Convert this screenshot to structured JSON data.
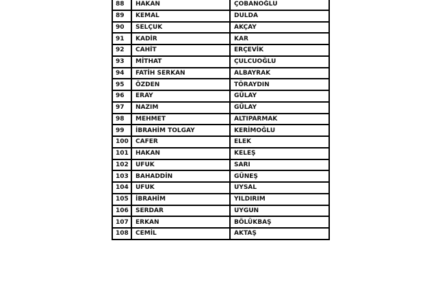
{
  "rows": [
    [
      "88",
      "HAKAN",
      "ÇOBANOĞLU"
    ],
    [
      "89",
      "KEMAL",
      "DULDA"
    ],
    [
      "90",
      "SELÇUK",
      "AKÇAY"
    ],
    [
      "91",
      "KADİR",
      "KAR"
    ],
    [
      "92",
      "CAHİT",
      "ERÇEVİK"
    ],
    [
      "93",
      "MİTHAT",
      "ÇULCUOĞLU"
    ],
    [
      "94",
      "FATİH SERKAN",
      "ALBAYRAK"
    ],
    [
      "95",
      "ÖZDEN",
      "TÖRAYDIN"
    ],
    [
      "96",
      "ERAY",
      "GÜLAY"
    ],
    [
      "97",
      "NAZIM",
      "GÜLAY"
    ],
    [
      "98",
      "MEHMET",
      "ALTIPARMAK"
    ],
    [
      "99",
      "İBRAHİM TOLGAY",
      "KERİMOĞLU"
    ],
    [
      "100",
      "CAFER",
      "ELEK"
    ],
    [
      "101",
      "HAKAN",
      "KELEŞ"
    ],
    [
      "102",
      "UFUK",
      "SARI"
    ],
    [
      "103",
      "BAHADDİN",
      "GÜNEŞ"
    ],
    [
      "104",
      "UFUK",
      "UYSAL"
    ],
    [
      "105",
      "İBRAHİM",
      "YILDIRIM"
    ],
    [
      "106",
      "SERDAR",
      "UYGUN"
    ],
    [
      "107",
      "ERKAN",
      "BÖLÜKBAŞ"
    ],
    [
      "108",
      "CEMİL",
      "AKTAŞ"
    ]
  ]
}
